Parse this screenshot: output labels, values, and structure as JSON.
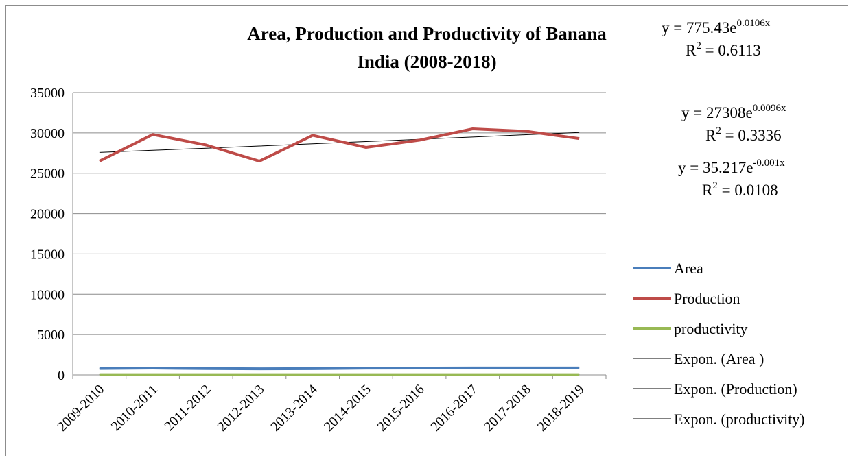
{
  "chart_data": {
    "type": "line",
    "title": "Area, Production and Productivity of Banana",
    "subtitle": "India (2008-2018)",
    "categories": [
      "2009-2010",
      "2010-2011",
      "2011-2012",
      "2012-2013",
      "2013-2014",
      "2014-2015",
      "2015-2016",
      "2016-2017",
      "2017-2018",
      "2018-2019"
    ],
    "ylim": [
      0,
      35000
    ],
    "yticks": [
      0,
      5000,
      10000,
      15000,
      20000,
      25000,
      30000,
      35000
    ],
    "grid": true,
    "legend_position": "right",
    "series": [
      {
        "name": "Area",
        "color": "#4a7ebb",
        "values": [
          800,
          850,
          780,
          760,
          770,
          840,
          850,
          860,
          860,
          860
        ]
      },
      {
        "name": "Production",
        "color": "#be4b48",
        "values": [
          26500,
          29800,
          28500,
          26500,
          29700,
          28200,
          29100,
          30500,
          30200,
          29300
        ]
      },
      {
        "name": "productivity",
        "color": "#98b954",
        "values": [
          33,
          35,
          36,
          35,
          38,
          34,
          34,
          35,
          35,
          34
        ]
      }
    ],
    "trendlines": [
      {
        "name": "Expon. (Area )",
        "a": 775.43,
        "b": 0.0106,
        "eq_coef": "775.43",
        "eq_exp": "0.0106x",
        "r2": "0.6113"
      },
      {
        "name": "Expon. (Production)",
        "a": 27308,
        "b": 0.0096,
        "eq_coef": "27308",
        "eq_exp": "0.0096x",
        "r2": "0.3336"
      },
      {
        "name": "Expon. (productivity)",
        "a": 35.217,
        "b": -0.001,
        "eq_coef": "35.217",
        "eq_exp": "-0.001x",
        "r2": "0.0108"
      }
    ]
  }
}
